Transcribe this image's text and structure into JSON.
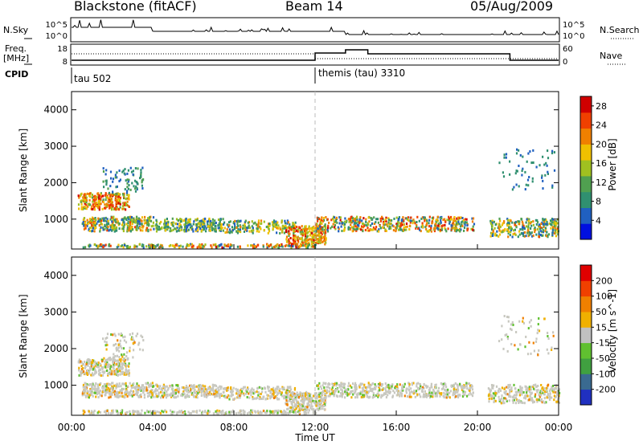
{
  "header": {
    "radar": "Blackstone (fitACF)",
    "beam": "Beam 14",
    "date": "05/Aug/2009"
  },
  "info_panel": {
    "nsky_label": "N.Sky",
    "nsky_ticks": [
      "10^5",
      "10^0"
    ],
    "nsearch_label": "N.Search",
    "nsearch_ticks": [
      "10^5",
      "10^0"
    ],
    "freq_label": "Freq.",
    "freq_unit": "[MHz]",
    "freq_ticks": [
      "18",
      "8"
    ],
    "nave_label": "Nave",
    "nave_ticks": [
      "60",
      "0"
    ],
    "cpid_label": "CPID",
    "cpid_entries": [
      {
        "name": "tau 502",
        "start": "00:00"
      },
      {
        "name": "themis (tau) 3310",
        "start": "12:00"
      }
    ]
  },
  "chart_data": [
    {
      "type": "heatmap",
      "title": "",
      "xlabel": "Time UT",
      "ylabel": "Slant Range [km]",
      "x_ticks": [
        "00:00",
        "04:00",
        "08:00",
        "12:00",
        "16:00",
        "20:00",
        "00:00"
      ],
      "y_ticks": [
        1000,
        2000,
        3000,
        4000
      ],
      "ylim": [
        180,
        4500
      ],
      "colorbar": {
        "label": "Power [dB]",
        "ticks": [
          4,
          8,
          12,
          16,
          20,
          24,
          28
        ],
        "range": [
          0,
          30
        ],
        "colors": [
          "#0010e0",
          "#2060c0",
          "#309070",
          "#50a050",
          "#a0c020",
          "#f0c000",
          "#f08000",
          "#f04000",
          "#d00000"
        ]
      }
    },
    {
      "type": "heatmap",
      "title": "",
      "xlabel": "Time UT",
      "ylabel": "Slant Range [km]",
      "x_ticks": [
        "00:00",
        "04:00",
        "08:00",
        "12:00",
        "16:00",
        "20:00",
        "00:00"
      ],
      "y_ticks": [
        1000,
        2000,
        3000,
        4000
      ],
      "ylim": [
        180,
        4500
      ],
      "colorbar": {
        "label": "Velocity [m s^-1]",
        "ticks": [
          "200",
          "100",
          "50",
          "15",
          "-15",
          "-50",
          "-100",
          "-200"
        ],
        "colors": [
          "#2030c0",
          "#3a6a90",
          "#40a040",
          "#60c030",
          "#c0c0c0",
          "#f0b000",
          "#f08000",
          "#f04000",
          "#e00000"
        ]
      }
    }
  ]
}
